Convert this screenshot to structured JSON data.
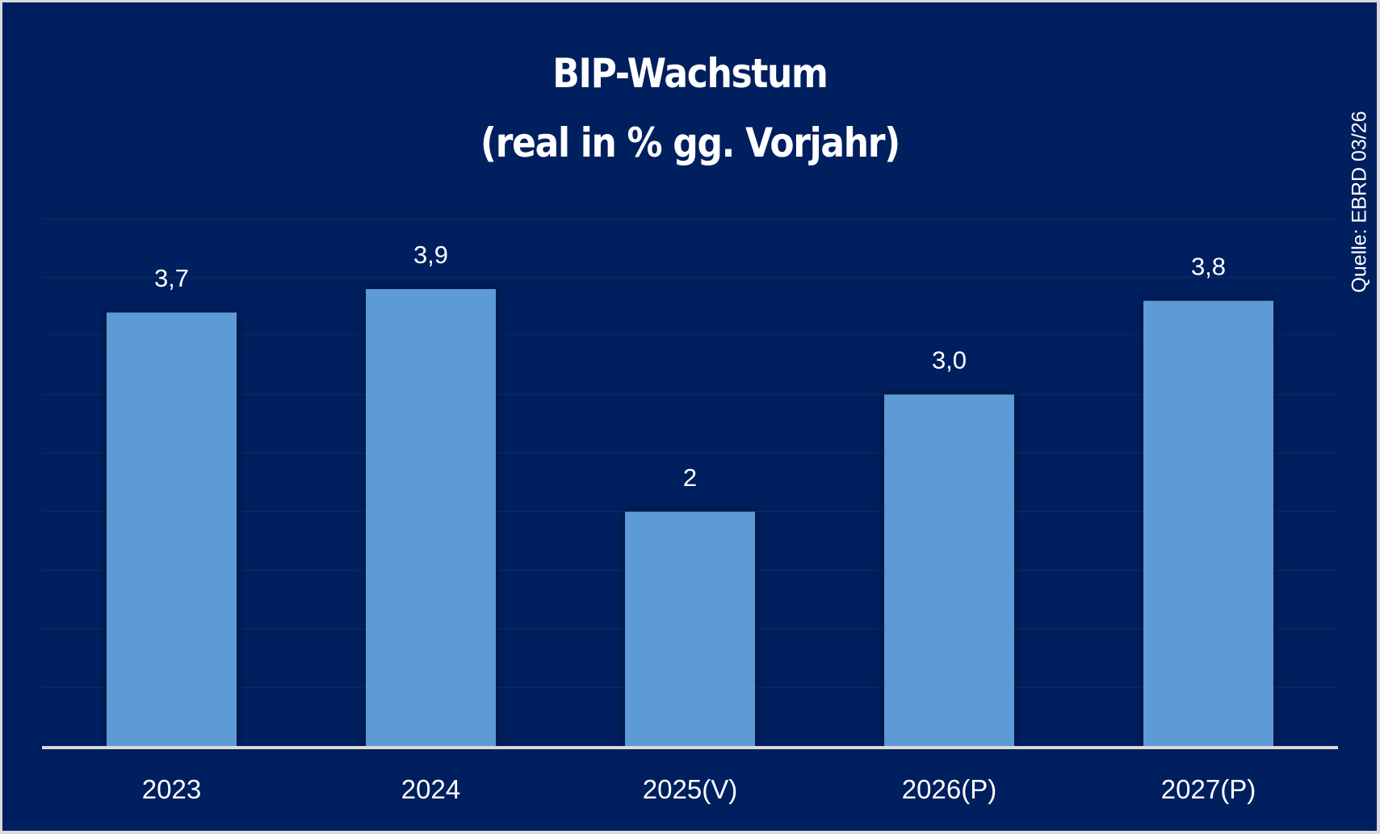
{
  "chart_data": {
    "type": "bar",
    "title": "BIP-Wachstum",
    "subtitle": "(real in % gg. Vorjahr)",
    "source": "Quelle: EBRD 03/26",
    "categories": [
      "2023",
      "2024",
      "2025(V)",
      "2026(P)",
      "2027(P)"
    ],
    "values": [
      3.7,
      3.9,
      2.0,
      3.0,
      3.8
    ],
    "data_labels": [
      "3,7",
      "3,9",
      "2",
      "3,0",
      "3,8"
    ],
    "xlabel": "",
    "ylabel": "",
    "ylim": [
      0,
      4.5
    ],
    "grid": true,
    "colors": {
      "background": "#001f5f",
      "bar": "#5b9bd5",
      "axis": "#d9d9d9",
      "grid": "#0d2a55"
    }
  }
}
